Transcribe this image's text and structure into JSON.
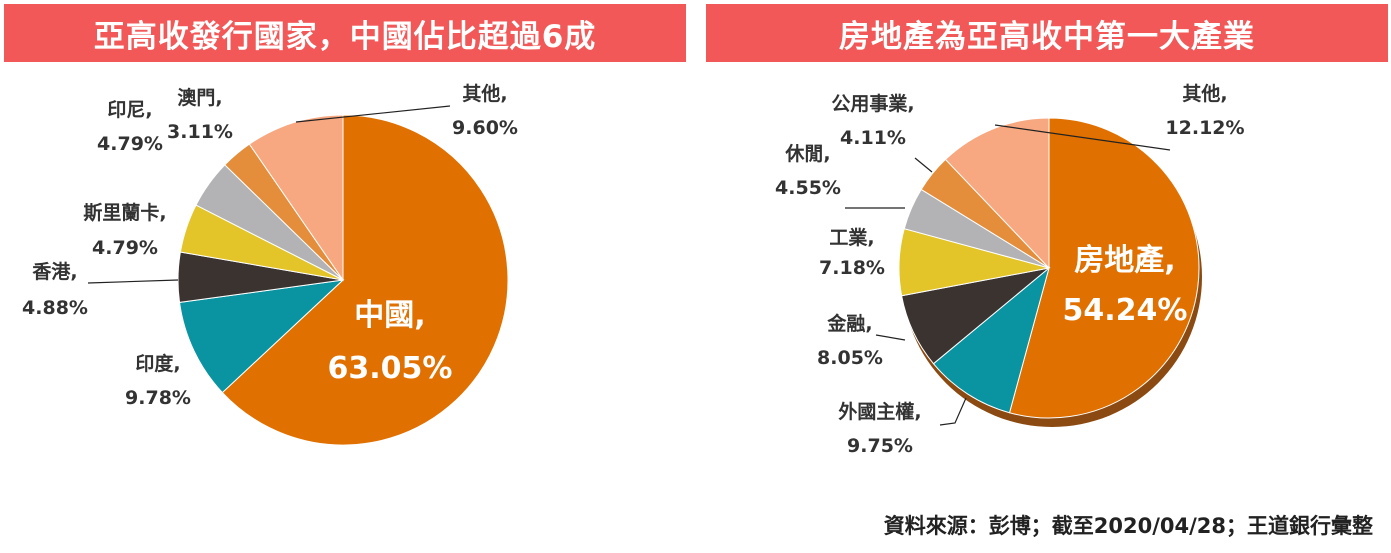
{
  "charts": [
    {
      "title": "亞高收發行國家，中國佔比超過6成",
      "type": "pie",
      "slices": [
        {
          "name": "中國",
          "value": 63.05,
          "label": "63.05%",
          "color": "#e07000"
        },
        {
          "name": "印度",
          "value": 9.78,
          "label": "9.78%",
          "color": "#0a93a0"
        },
        {
          "name": "香港",
          "value": 4.88,
          "label": "4.88%",
          "color": "#3a3330"
        },
        {
          "name": "斯里蘭卡",
          "value": 4.79,
          "label": "4.79%",
          "color": "#e3c52a"
        },
        {
          "name": "印尼",
          "value": 4.79,
          "label": "4.79%",
          "color": "#b3b3b6"
        },
        {
          "name": "澳門",
          "value": 3.11,
          "label": "3.11%",
          "color": "#e48d3a"
        },
        {
          "name": "其他",
          "value": 9.6,
          "label": "9.60%",
          "color": "#f8a880"
        }
      ]
    },
    {
      "title": "房地產為亞高收中第一大產業",
      "type": "pie",
      "slices": [
        {
          "name": "房地產",
          "value": 54.24,
          "label": "54.24%",
          "color": "#e07000"
        },
        {
          "name": "外國主權",
          "value": 9.75,
          "label": "9.75%",
          "color": "#0a93a0"
        },
        {
          "name": "金融",
          "value": 8.05,
          "label": "8.05%",
          "color": "#3a3330"
        },
        {
          "name": "工業",
          "value": 7.18,
          "label": "7.18%",
          "color": "#e3c52a"
        },
        {
          "name": "休閒",
          "value": 4.55,
          "label": "4.55%",
          "color": "#b3b3b6"
        },
        {
          "name": "公用事業",
          "value": 4.11,
          "label": "4.11%",
          "color": "#e48d3a"
        },
        {
          "name": "其他",
          "value": 12.12,
          "label": "12.12%",
          "color": "#f8a880"
        }
      ]
    }
  ],
  "source": "資料來源：彭博；截至2020/04/28；王道銀行彙整"
}
